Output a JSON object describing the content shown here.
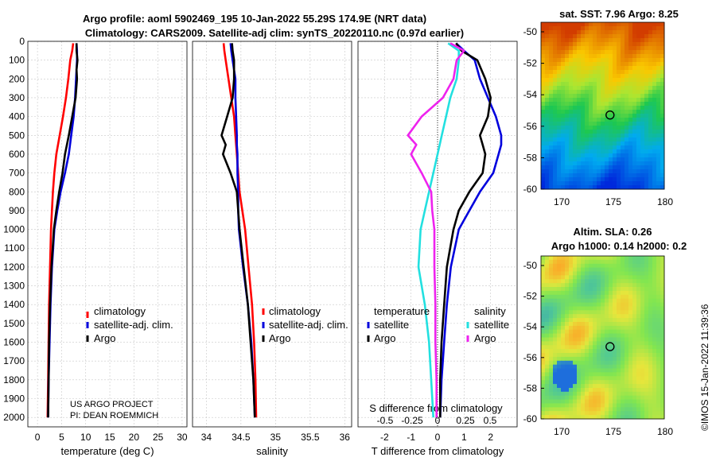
{
  "header": {
    "title_line1": "Argo profile: aoml 5902469_195 10-Jan-2022 55.29S 174.9E (NRT data)",
    "title_line2": "Climatology: CARS2009. Satellite-adj clim: synTS_20220110.nc (0.97d earlier)"
  },
  "colors": {
    "climatology": "#ff0000",
    "satellite": "#0000dd",
    "argo": "#000000",
    "sat_salinity": "#22e0e0",
    "argo_salinity": "#ee22ee"
  },
  "depth_axis": {
    "range": [
      0,
      2050
    ],
    "ticks": [
      0,
      100,
      200,
      300,
      400,
      500,
      600,
      700,
      800,
      900,
      1000,
      1100,
      1200,
      1300,
      1400,
      1500,
      1600,
      1700,
      1800,
      1900,
      2000
    ]
  },
  "chart_data": [
    {
      "type": "line",
      "name": "temperature",
      "xlabel": "temperature (deg C)",
      "xlim": [
        -2,
        31
      ],
      "xticks": [
        0,
        5,
        10,
        15,
        20,
        25,
        30
      ],
      "depths": [
        10,
        50,
        100,
        150,
        200,
        300,
        400,
        500,
        600,
        700,
        800,
        900,
        1000,
        1200,
        1400,
        1600,
        1800,
        2000
      ],
      "series": [
        {
          "name": "climatology",
          "color": "#ff0000",
          "values": [
            7.4,
            7.2,
            6.8,
            6.6,
            6.4,
            5.9,
            5.3,
            4.6,
            3.9,
            3.5,
            3.2,
            3.0,
            2.8,
            2.6,
            2.4,
            2.3,
            2.2,
            2.1
          ]
        },
        {
          "name": "satellite-adj. clim.",
          "color": "#0000dd",
          "values": [
            8.1,
            8.2,
            8.2,
            8.1,
            8.0,
            7.8,
            7.5,
            7.0,
            6.5,
            5.7,
            4.8,
            4.1,
            3.5,
            3.0,
            2.7,
            2.5,
            2.3,
            2.2
          ]
        },
        {
          "name": "Argo",
          "color": "#000000",
          "values": [
            8.1,
            8.1,
            8.3,
            8.1,
            8.2,
            7.9,
            7.2,
            6.5,
            5.7,
            5.2,
            4.5,
            3.9,
            3.4,
            2.9,
            2.6,
            2.4,
            2.3,
            2.2
          ]
        }
      ]
    },
    {
      "type": "line",
      "name": "salinity",
      "xlabel": "salinity",
      "xlim": [
        33.8,
        36.1
      ],
      "xticks": [
        34,
        34.5,
        35,
        35.5,
        36
      ],
      "depths": [
        10,
        50,
        100,
        200,
        300,
        400,
        500,
        550,
        600,
        700,
        800,
        900,
        1000,
        1200,
        1400,
        1600,
        1800,
        2000
      ],
      "series": [
        {
          "name": "climatology",
          "color": "#ff0000",
          "values": [
            34.25,
            34.26,
            34.28,
            34.32,
            34.36,
            34.4,
            34.42,
            34.43,
            34.44,
            34.46,
            34.48,
            34.52,
            34.56,
            34.61,
            34.66,
            34.69,
            34.71,
            34.72
          ]
        },
        {
          "name": "satellite-adj. clim.",
          "color": "#0000dd",
          "values": [
            34.35,
            34.36,
            34.38,
            34.42,
            34.42,
            34.43,
            34.44,
            34.44,
            34.45,
            34.45,
            34.46,
            34.46,
            34.47,
            34.53,
            34.6,
            34.65,
            34.68,
            34.7
          ]
        },
        {
          "name": "Argo",
          "color": "#000000",
          "values": [
            34.37,
            34.38,
            34.4,
            34.4,
            34.38,
            34.3,
            34.22,
            34.28,
            34.24,
            34.35,
            34.44,
            34.46,
            34.48,
            34.54,
            34.6,
            34.64,
            34.68,
            34.7
          ]
        }
      ]
    },
    {
      "type": "line",
      "name": "difference",
      "xlabel": "T difference from climatology",
      "xlabel_top": "S difference from climatology",
      "xlim": [
        -3,
        3
      ],
      "xticks": [
        -2,
        -1,
        0,
        1,
        2
      ],
      "xticks_top": [
        "-0.5",
        "-0.25",
        "0",
        "0.25",
        "0.5"
      ],
      "depths": [
        10,
        50,
        100,
        200,
        300,
        400,
        500,
        550,
        600,
        700,
        800,
        900,
        1000,
        1200,
        1400,
        1600,
        1800,
        2000
      ],
      "series": [
        {
          "name": "temperature satellite",
          "color": "#0000dd",
          "values": [
            0.7,
            1.0,
            1.4,
            1.6,
            1.9,
            2.2,
            2.4,
            2.4,
            2.3,
            2.1,
            1.6,
            1.2,
            0.8,
            0.5,
            0.35,
            0.25,
            0.15,
            0.1
          ]
        },
        {
          "name": "temperature Argo",
          "color": "#000000",
          "values": [
            0.7,
            0.9,
            1.5,
            1.8,
            2.0,
            1.9,
            1.6,
            1.7,
            1.8,
            1.7,
            1.2,
            0.8,
            0.6,
            0.35,
            0.25,
            0.15,
            0.1,
            0.1
          ]
        },
        {
          "name": "salinity satellite",
          "color": "#22e0e0",
          "values": [
            0.1,
            0.2,
            0.2,
            0.18,
            0.12,
            0.08,
            0.04,
            0.02,
            0.0,
            -0.04,
            -0.08,
            -0.12,
            -0.16,
            -0.18,
            -0.12,
            -0.08,
            -0.06,
            -0.04
          ]
        },
        {
          "name": "salinity Argo",
          "color": "#ee22ee",
          "values": [
            0.12,
            0.25,
            0.18,
            0.15,
            0.05,
            -0.15,
            -0.28,
            -0.2,
            -0.25,
            -0.15,
            -0.06,
            -0.05,
            -0.03,
            -0.03,
            -0.02,
            -0.02,
            -0.01,
            -0.01
          ]
        }
      ]
    }
  ],
  "legends": {
    "temperature": [
      "climatology",
      "satellite-adj. clim.",
      "Argo"
    ],
    "salinity": [
      "climatology",
      "satellite-adj. clim.",
      "Argo"
    ],
    "difference": {
      "temperature_header": "temperature",
      "salinity_header": "salinity",
      "temperature_items": [
        "satellite",
        "Argo"
      ],
      "salinity_items": [
        "satellite",
        "Argo"
      ]
    }
  },
  "credit": {
    "line1": "US ARGO PROJECT",
    "line2": "PI: DEAN ROEMMICH"
  },
  "maps": {
    "sst": {
      "title": "sat. SST: 7.96 Argo: 8.25",
      "yticks": [
        "-50",
        "-52",
        "-54",
        "-56",
        "-58",
        "-60"
      ],
      "xticks": [
        "170",
        "175",
        "180"
      ]
    },
    "sla": {
      "title_line1": "Altim. SLA: 0.26",
      "title_line2": "Argo h1000: 0.14 h2000: 0.2",
      "yticks": [
        "-50",
        "-52",
        "-54",
        "-56",
        "-58",
        "-60"
      ],
      "xticks": [
        "170",
        "175",
        "180"
      ]
    },
    "profile_location": {
      "lon": 174.9,
      "lat": -55.29
    }
  },
  "footer": {
    "stamp": "©IMOS 15-Jan-2022 11:39:36"
  }
}
